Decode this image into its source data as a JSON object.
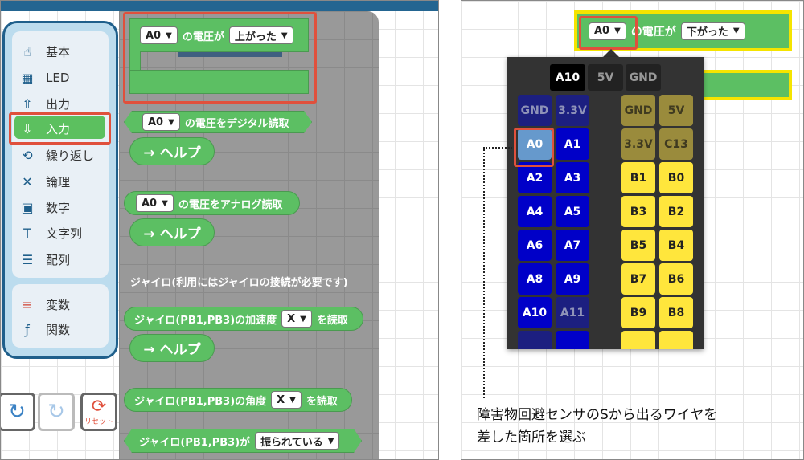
{
  "sidebar": {
    "items": [
      {
        "label": "基本",
        "icon": "hand-icon"
      },
      {
        "label": "LED",
        "icon": "led-matrix-icon"
      },
      {
        "label": "出力",
        "icon": "output-icon"
      },
      {
        "label": "入力",
        "icon": "input-icon",
        "selected": true
      },
      {
        "label": "繰り返し",
        "icon": "loop-icon"
      },
      {
        "label": "論理",
        "icon": "logic-icon"
      },
      {
        "label": "数字",
        "icon": "number-icon"
      },
      {
        "label": "文字列",
        "icon": "text-icon"
      },
      {
        "label": "配列",
        "icon": "array-icon"
      }
    ],
    "items2": [
      {
        "label": "変数",
        "icon": "variable-icon"
      },
      {
        "label": "関数",
        "icon": "function-icon"
      }
    ]
  },
  "controls": {
    "undo": "undo-icon",
    "redo": "redo-icon",
    "reset_label": "リセット"
  },
  "flyout": {
    "event_block": {
      "pin": "A0",
      "text": "の電圧が",
      "direction": "上がった"
    },
    "digital_block": {
      "pin": "A0",
      "text": "の電圧をデジタル読取"
    },
    "analog_block": {
      "pin": "A0",
      "text": "の電圧をアナログ読取"
    },
    "help_label": "→ ヘルプ",
    "gyro_label": "ジャイロ(利用にはジャイロの接続が必要です)",
    "accel_block": {
      "text": "ジャイロ(PB1,PB3)の加速度",
      "axis": "X",
      "suffix": "を読取"
    },
    "angle_block": {
      "text": "ジャイロ(PB1,PB3)の角度",
      "axis": "X",
      "suffix": "を読取"
    },
    "shake_block": {
      "text": "ジャイロ(PB1,PB3)が",
      "state": "振られている"
    }
  },
  "workspace": {
    "event_block": {
      "pin": "A0",
      "text": "の電圧が",
      "direction": "下がった"
    },
    "pin_picker": {
      "tabs": [
        "A10",
        "5V",
        "GND"
      ],
      "rows": [
        [
          "GND",
          "3.3V",
          "GND",
          "5V"
        ],
        [
          "A0",
          "A1",
          "3.3V",
          "C13"
        ],
        [
          "A2",
          "A3",
          "B1",
          "B0"
        ],
        [
          "A4",
          "A5",
          "B3",
          "B2"
        ],
        [
          "A6",
          "A7",
          "B5",
          "B4"
        ],
        [
          "A8",
          "A9",
          "B7",
          "B6"
        ],
        [
          "A10",
          "A11",
          "B9",
          "B8"
        ]
      ],
      "selected": "A0"
    },
    "colors": {
      "blue_pin": "#0000c8",
      "yellow_pin": "#ffe63c",
      "selected_pin": "#6699cc",
      "highlight": "#e0503c"
    }
  },
  "caption": {
    "line1": "障害物回避センサのSから出るワイヤを",
    "line2": "差した箇所を選ぶ"
  }
}
